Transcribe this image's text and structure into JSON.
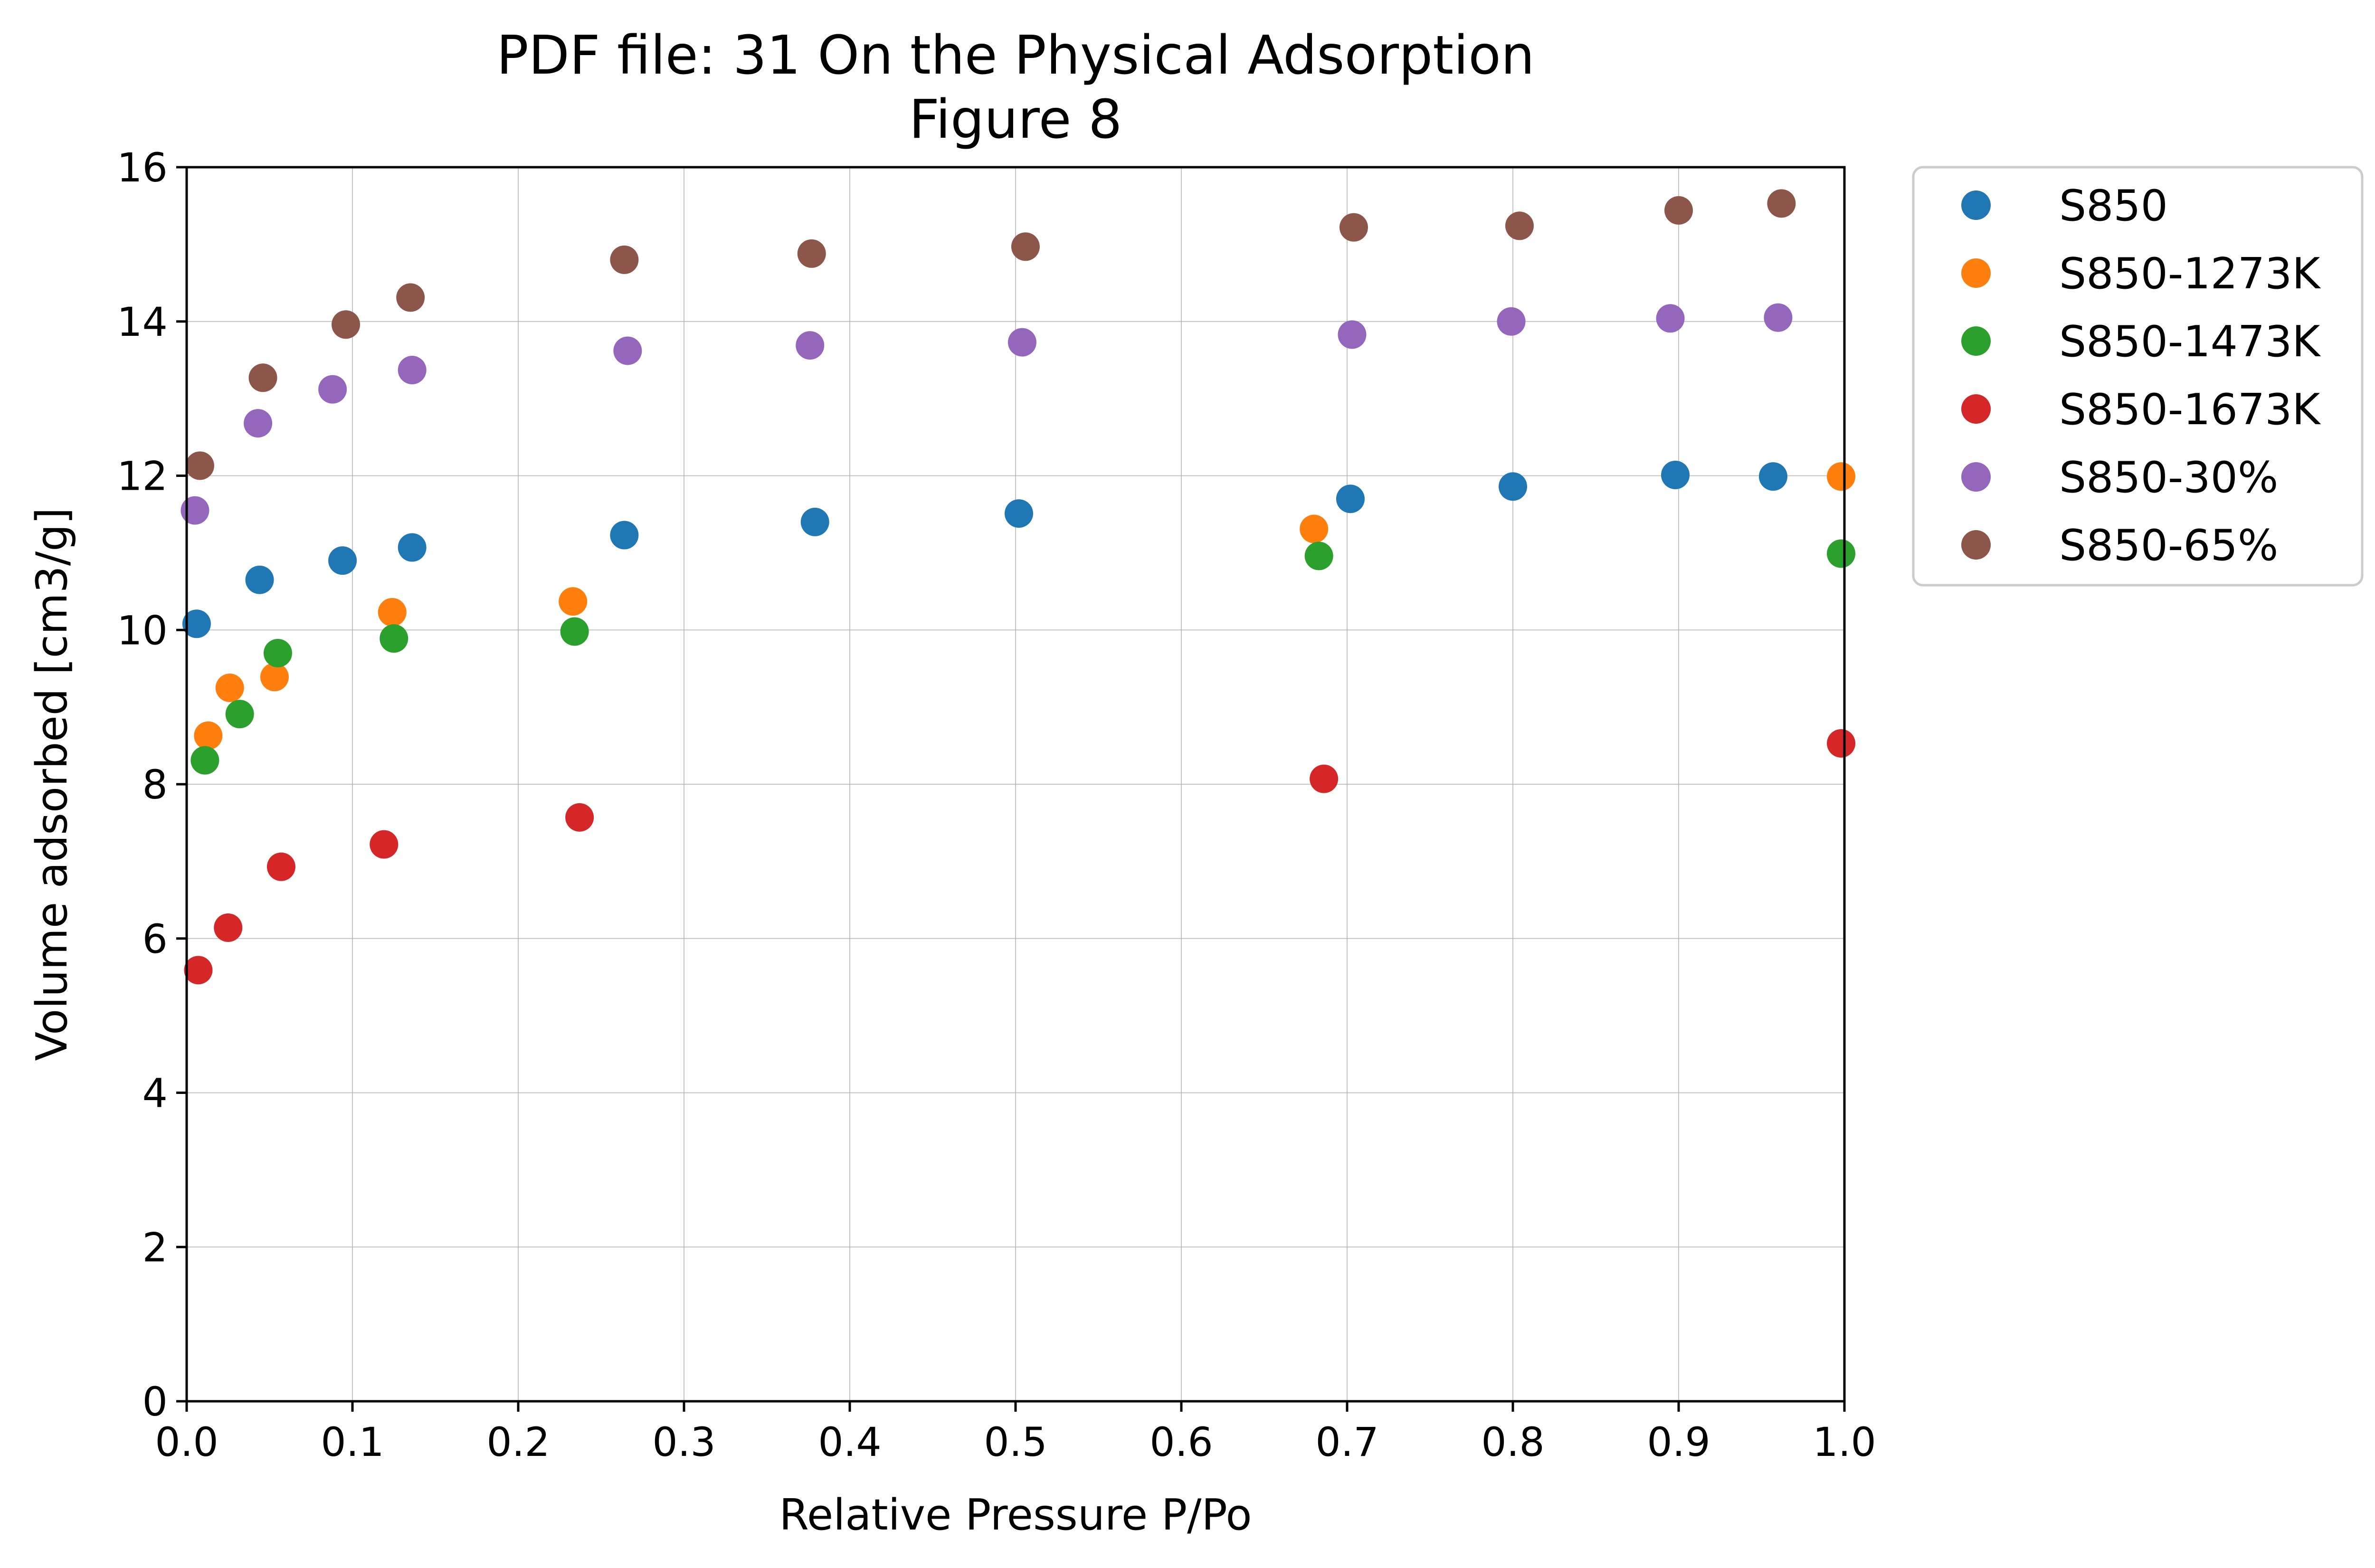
{
  "chart_data": {
    "type": "scatter",
    "title": "PDF file: 31 On the Physical Adsorption",
    "subtitle": "Figure 8",
    "xlabel": "Relative Pressure P/Po",
    "ylabel": "Volume adsorbed [cm3/g]",
    "xlim": [
      0,
      1
    ],
    "ylim": [
      0,
      16
    ],
    "xticks": [
      "0.0",
      "0.1",
      "0.2",
      "0.3",
      "0.4",
      "0.5",
      "0.6",
      "0.7",
      "0.8",
      "0.9",
      "1.0"
    ],
    "yticks": [
      "0",
      "2",
      "4",
      "6",
      "8",
      "10",
      "12",
      "14",
      "16"
    ],
    "grid": true,
    "legend_position": "outside-top-right",
    "series": [
      {
        "name": "S850",
        "color": "#1f77b4",
        "x": [
          0.006,
          0.044,
          0.094,
          0.136,
          0.264,
          0.379,
          0.502,
          0.702,
          0.8,
          0.898,
          0.957
        ],
        "y": [
          10.08,
          10.65,
          10.9,
          11.07,
          11.23,
          11.4,
          11.51,
          11.7,
          11.86,
          12.01,
          11.99
        ]
      },
      {
        "name": "S850-1273K",
        "color": "#ff7f0e",
        "x": [
          0.013,
          0.026,
          0.053,
          0.124,
          0.233,
          0.68,
          0.998
        ],
        "y": [
          8.63,
          9.25,
          9.39,
          10.23,
          10.37,
          11.31,
          11.99
        ]
      },
      {
        "name": "S850-1473K",
        "color": "#2ca02c",
        "x": [
          0.011,
          0.032,
          0.055,
          0.125,
          0.234,
          0.683,
          0.998
        ],
        "y": [
          8.31,
          8.91,
          9.7,
          9.89,
          9.98,
          10.96,
          10.99
        ]
      },
      {
        "name": "S850-1673K",
        "color": "#d62728",
        "x": [
          0.007,
          0.025,
          0.057,
          0.119,
          0.237,
          0.686,
          0.998
        ],
        "y": [
          5.59,
          6.14,
          6.93,
          7.22,
          7.57,
          8.07,
          8.53
        ]
      },
      {
        "name": "S850-30%",
        "color": "#9467bd",
        "x": [
          0.005,
          0.043,
          0.088,
          0.136,
          0.266,
          0.376,
          0.504,
          0.703,
          0.799,
          0.895,
          0.96
        ],
        "y": [
          11.55,
          12.68,
          13.12,
          13.37,
          13.62,
          13.69,
          13.73,
          13.83,
          14.0,
          14.04,
          14.05
        ]
      },
      {
        "name": "S850-65%",
        "color": "#8c564b",
        "x": [
          0.008,
          0.046,
          0.096,
          0.135,
          0.264,
          0.377,
          0.506,
          0.704,
          0.804,
          0.9,
          0.962
        ],
        "y": [
          12.13,
          13.27,
          13.96,
          14.31,
          14.8,
          14.88,
          14.97,
          15.22,
          15.24,
          15.44,
          15.53
        ]
      }
    ]
  }
}
